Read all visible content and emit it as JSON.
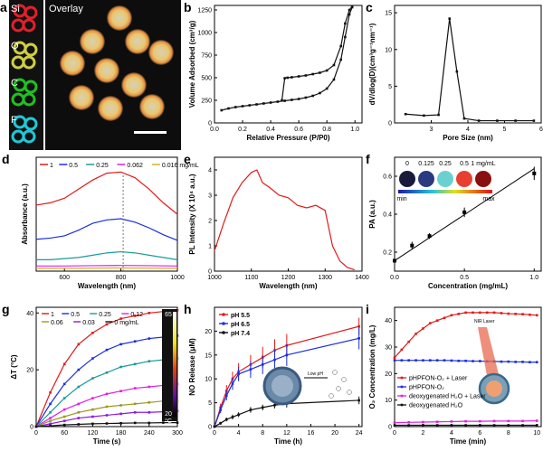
{
  "panel_letters": {
    "a": "a",
    "b": "b",
    "c": "c",
    "d": "d",
    "e": "e",
    "f": "f",
    "g": "g",
    "h": "h",
    "i": "i"
  },
  "colors": {
    "red": "#e21a1a",
    "blue": "#1a2ee0",
    "green": "#1a9a3a",
    "magenta": "#e020e0",
    "black": "#111111",
    "olive": "#9a9a1a",
    "teal": "#1a9a9a",
    "purple": "#8a1ae0"
  },
  "panel_a": {
    "channels": [
      {
        "label": "Si",
        "color": "#e0202a"
      },
      {
        "label": "O",
        "color": "#cfcf40"
      },
      {
        "label": "C",
        "color": "#20c020"
      },
      {
        "label": "F",
        "color": "#20c8d8"
      }
    ],
    "overlay_label": "Overlay"
  },
  "chart_data": [
    {
      "panel": "b",
      "type": "line",
      "xlabel": "Relative Pressure (P/P0)",
      "ylabel": "Volume Adsorbed (cm³/g)",
      "xlim": [
        0,
        1.05
      ],
      "ylim": [
        0,
        1300
      ],
      "xticks": [
        "0.0",
        "0.2",
        "0.4",
        "0.6",
        "0.8",
        "1.0"
      ],
      "yticks": [
        "0",
        "250",
        "500",
        "750",
        "1000",
        "1250"
      ],
      "series": [
        {
          "name": "",
          "x": [
            0.05,
            0.1,
            0.15,
            0.2,
            0.25,
            0.3,
            0.35,
            0.4,
            0.45,
            0.5,
            0.55,
            0.6,
            0.65,
            0.7,
            0.75,
            0.8,
            0.85,
            0.9,
            0.93,
            0.96,
            0.98
          ],
          "y": [
            140,
            160,
            175,
            185,
            195,
            205,
            215,
            225,
            235,
            245,
            255,
            265,
            280,
            300,
            330,
            380,
            480,
            700,
            950,
            1200,
            1280
          ]
        },
        {
          "name": "",
          "x": [
            0.98,
            0.96,
            0.93,
            0.9,
            0.85,
            0.8,
            0.75,
            0.7,
            0.65,
            0.6,
            0.55,
            0.52,
            0.5,
            0.48
          ],
          "y": [
            1290,
            1250,
            1100,
            850,
            640,
            580,
            555,
            540,
            525,
            515,
            505,
            500,
            495,
            250
          ]
        }
      ]
    },
    {
      "panel": "c",
      "type": "line",
      "xlabel": "Pore Size (nm)",
      "ylabel": "dV/dlog(D)(cm³g⁻¹nm⁻¹)",
      "xlim": [
        2,
        6
      ],
      "ylim": [
        0,
        16
      ],
      "xticks": [
        "3",
        "4",
        "5",
        "6"
      ],
      "yticks": [
        "0",
        "5",
        "10",
        "15"
      ],
      "series": [
        {
          "name": "",
          "x": [
            2.3,
            2.8,
            3.2,
            3.5,
            3.7,
            3.9,
            4.3,
            4.8,
            5.3,
            5.8
          ],
          "y": [
            1.2,
            1.0,
            1.1,
            14.2,
            7,
            0.6,
            0.3,
            0.3,
            0.3,
            0.3
          ]
        }
      ]
    },
    {
      "panel": "d",
      "type": "line",
      "xlabel": "Wavelength (nm)",
      "ylabel": "Absorbance (a.u.)",
      "xlim": [
        500,
        1000
      ],
      "ylim": [
        0,
        1
      ],
      "xticks": [
        "600",
        "800",
        "1000"
      ],
      "legend": [
        "1",
        "0.5",
        "0.25",
        "0.062",
        "0.016 mg/mL"
      ],
      "series": [
        {
          "name": "1",
          "x": [
            500,
            550,
            600,
            650,
            700,
            750,
            800,
            850,
            900,
            950,
            1000
          ],
          "y": [
            0.58,
            0.6,
            0.64,
            0.72,
            0.8,
            0.86,
            0.87,
            0.82,
            0.72,
            0.6,
            0.5
          ]
        },
        {
          "name": "0.5",
          "x": [
            500,
            550,
            600,
            650,
            700,
            750,
            800,
            850,
            900,
            950,
            1000
          ],
          "y": [
            0.28,
            0.29,
            0.31,
            0.36,
            0.42,
            0.45,
            0.46,
            0.43,
            0.38,
            0.32,
            0.27
          ]
        },
        {
          "name": "0.25",
          "x": [
            500,
            550,
            600,
            650,
            700,
            750,
            800,
            850,
            900,
            950,
            1000
          ],
          "y": [
            0.1,
            0.1,
            0.11,
            0.12,
            0.14,
            0.16,
            0.17,
            0.16,
            0.14,
            0.12,
            0.1
          ]
        },
        {
          "name": "0.062",
          "x": [
            500,
            600,
            700,
            800,
            900,
            1000
          ],
          "y": [
            0.045,
            0.045,
            0.048,
            0.05,
            0.048,
            0.045
          ]
        },
        {
          "name": "0.016 mg/mL",
          "x": [
            500,
            600,
            700,
            800,
            900,
            1000
          ],
          "y": [
            0.025,
            0.025,
            0.027,
            0.028,
            0.027,
            0.025
          ]
        }
      ]
    },
    {
      "panel": "e",
      "type": "line",
      "xlabel": "Wavelength (nm)",
      "ylabel": "PL Intensity (X 10⁴ a.u.)",
      "xlim": [
        1000,
        1400
      ],
      "ylim": [
        0,
        4.5
      ],
      "xticks": [
        "1000",
        "1100",
        "1200",
        "1300",
        "1400"
      ],
      "yticks": [
        "0",
        "1",
        "2",
        "3",
        "4"
      ],
      "series": [
        {
          "name": "",
          "x": [
            1000,
            1025,
            1050,
            1075,
            1100,
            1115,
            1130,
            1150,
            1175,
            1200,
            1225,
            1250,
            1275,
            1300,
            1320,
            1340,
            1360,
            1380
          ],
          "y": [
            0.8,
            1.9,
            2.9,
            3.5,
            3.9,
            4.0,
            3.5,
            3.3,
            3.0,
            2.9,
            2.6,
            2.5,
            2.6,
            2.4,
            1.0,
            0.4,
            0.15,
            0.05
          ]
        }
      ]
    },
    {
      "panel": "f",
      "type": "scatter",
      "xlabel": "Concentration (mg/mL)",
      "ylabel": "PA (a.u.)",
      "xlim": [
        0,
        1.05
      ],
      "ylim": [
        0.1,
        0.7
      ],
      "xticks": [
        "0.0",
        "0.5",
        "1.0"
      ],
      "yticks": [
        "0.2",
        "0.4",
        "0.6"
      ],
      "x": [
        0,
        0.125,
        0.25,
        0.5,
        1.0
      ],
      "y": [
        0.155,
        0.235,
        0.285,
        0.41,
        0.615
      ],
      "fit": "linear",
      "inset_labels": [
        "0",
        "0.125",
        "0.25",
        "0.5",
        "1 mg/mL"
      ],
      "colorbar_min": "min",
      "colorbar_max": "max"
    },
    {
      "panel": "g",
      "type": "line",
      "xlabel": "Time (s)",
      "ylabel": "ΔT (°C)",
      "xlim": [
        0,
        300
      ],
      "ylim": [
        0,
        42
      ],
      "xticks": [
        "0",
        "60",
        "120",
        "180",
        "240",
        "300"
      ],
      "yticks": [
        "0",
        "20",
        "40"
      ],
      "legend": [
        "1",
        "0.5",
        "0.25",
        "0.12",
        "0.06",
        "0.03",
        "0 mg/mL"
      ],
      "colorbar_top": "65",
      "colorbar_bottom": "20",
      "colorbar_unit": "°C",
      "series": [
        {
          "name": "1",
          "x": [
            0,
            30,
            60,
            90,
            120,
            150,
            180,
            210,
            240,
            270,
            300
          ],
          "y": [
            0,
            12,
            22,
            29,
            33,
            36,
            38,
            39,
            40,
            40.5,
            41
          ]
        },
        {
          "name": "0.5",
          "x": [
            0,
            30,
            60,
            90,
            120,
            150,
            180,
            210,
            240,
            270,
            300
          ],
          "y": [
            0,
            8,
            15,
            20,
            24,
            27,
            29,
            30,
            31,
            31.5,
            32
          ]
        },
        {
          "name": "0.25",
          "x": [
            0,
            30,
            60,
            90,
            120,
            150,
            180,
            210,
            240,
            270,
            300
          ],
          "y": [
            0,
            5,
            10,
            14,
            17,
            19,
            21,
            22,
            23,
            23.5,
            24
          ]
        },
        {
          "name": "0.12",
          "x": [
            0,
            30,
            60,
            90,
            120,
            150,
            180,
            210,
            240,
            270,
            300
          ],
          "y": [
            0,
            3,
            6,
            8,
            10,
            11.5,
            12.5,
            13.5,
            14,
            14.5,
            15
          ]
        },
        {
          "name": "0.06",
          "x": [
            0,
            30,
            60,
            90,
            120,
            150,
            180,
            210,
            240,
            270,
            300
          ],
          "y": [
            0,
            2,
            3.5,
            5,
            6,
            7,
            7.5,
            8,
            8.5,
            9,
            9
          ]
        },
        {
          "name": "0.03",
          "x": [
            0,
            30,
            60,
            90,
            120,
            150,
            180,
            210,
            240,
            270,
            300
          ],
          "y": [
            0,
            1,
            2,
            3,
            3.5,
            4,
            4.5,
            5,
            5,
            5.2,
            5.5
          ]
        },
        {
          "name": "0 mg/mL",
          "x": [
            0,
            30,
            60,
            90,
            120,
            150,
            180,
            210,
            240,
            270,
            300
          ],
          "y": [
            0,
            0.3,
            0.6,
            0.8,
            1,
            1.1,
            1.2,
            1.3,
            1.3,
            1.4,
            1.4
          ]
        }
      ]
    },
    {
      "panel": "h",
      "type": "line",
      "xlabel": "Time (h)",
      "ylabel": "NO Release (μM)",
      "xlim": [
        0,
        24.5
      ],
      "ylim": [
        0,
        25
      ],
      "xticks": [
        "0",
        "4",
        "8",
        "12",
        "16",
        "20",
        "24"
      ],
      "yticks": [
        "0",
        "5",
        "10",
        "15",
        "20"
      ],
      "legend": [
        "pH 5.5",
        "pH 6.5",
        "pH 7.4"
      ],
      "inset_text": "Low pH",
      "series": [
        {
          "name": "pH 5.5",
          "x": [
            0,
            1,
            2,
            3,
            4,
            6,
            8,
            10,
            12,
            24
          ],
          "y": [
            0,
            4,
            7.5,
            10,
            11.5,
            13,
            14.5,
            16,
            17,
            21
          ]
        },
        {
          "name": "pH 6.5",
          "x": [
            0,
            1,
            2,
            3,
            4,
            6,
            8,
            10,
            12,
            24
          ],
          "y": [
            0,
            3.5,
            6.5,
            9,
            11,
            12,
            13,
            14,
            15,
            18.5
          ]
        },
        {
          "name": "pH 7.4",
          "x": [
            0,
            1,
            2,
            3,
            4,
            6,
            8,
            10,
            12,
            24
          ],
          "y": [
            0,
            0.7,
            1.5,
            2,
            2.5,
            3.5,
            4,
            4.5,
            4.8,
            5.5
          ]
        }
      ]
    },
    {
      "panel": "i",
      "type": "line",
      "xlabel": "Time (min)",
      "ylabel": "O₂ Concentration (mg/L)",
      "xlim": [
        0,
        10.3
      ],
      "ylim": [
        0,
        45
      ],
      "xticks": [
        "0",
        "2",
        "4",
        "6",
        "8",
        "10"
      ],
      "yticks": [
        "0",
        "10",
        "20",
        "30",
        "40"
      ],
      "legend": [
        "pHPFON-O₂ + Laser",
        "pHPFON-O₂",
        "deoxygenated H₂O + Laser",
        "deoxygenated H₂O"
      ],
      "inset_text": "NIR Laser",
      "series": [
        {
          "name": "pHPFON-O₂ + Laser",
          "x": [
            0,
            0.5,
            1,
            1.5,
            2,
            2.5,
            3,
            3.5,
            4,
            4.5,
            5,
            5.5,
            6,
            6.5,
            7,
            7.5,
            8,
            8.5,
            9,
            9.5,
            10
          ],
          "y": [
            26,
            29,
            32,
            35,
            37,
            39,
            40,
            41,
            42,
            42.5,
            43,
            43,
            43,
            43,
            43,
            42.8,
            42.6,
            42.5,
            42.4,
            42.2,
            42
          ]
        },
        {
          "name": "pHPFON-O₂",
          "x": [
            0,
            0.5,
            1,
            1.5,
            2,
            2.5,
            3,
            3.5,
            4,
            4.5,
            5,
            5.5,
            6,
            6.5,
            7,
            7.5,
            8,
            8.5,
            9,
            9.5,
            10
          ],
          "y": [
            25,
            25,
            25,
            25,
            25,
            25,
            25,
            25,
            24.9,
            24.8,
            24.8,
            24.7,
            24.7,
            24.6,
            24.6,
            24.5,
            24.5,
            24.4,
            24.4,
            24.3,
            24.3
          ]
        },
        {
          "name": "deoxygenated H₂O + Laser",
          "x": [
            0,
            1,
            2,
            3,
            4,
            5,
            6,
            7,
            8,
            9,
            10
          ],
          "y": [
            1.5,
            1.6,
            1.7,
            1.8,
            1.9,
            2.0,
            2.0,
            2.1,
            2.1,
            2.1,
            2.2
          ]
        },
        {
          "name": "deoxygenated H₂O",
          "x": [
            0,
            1,
            2,
            3,
            4,
            5,
            6,
            7,
            8,
            9,
            10
          ],
          "y": [
            0.5,
            0.5,
            0.5,
            0.5,
            0.5,
            0.5,
            0.5,
            0.5,
            0.5,
            0.5,
            0.5
          ]
        }
      ]
    }
  ]
}
